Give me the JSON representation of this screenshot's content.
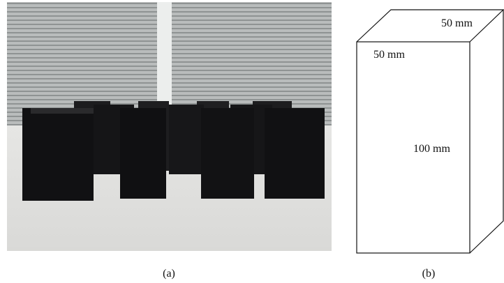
{
  "panels": [
    {
      "label": "(a)"
    },
    {
      "label": "(b)",
      "dimensions": [
        "50 mm",
        "50 mm",
        "100 mm"
      ]
    }
  ]
}
